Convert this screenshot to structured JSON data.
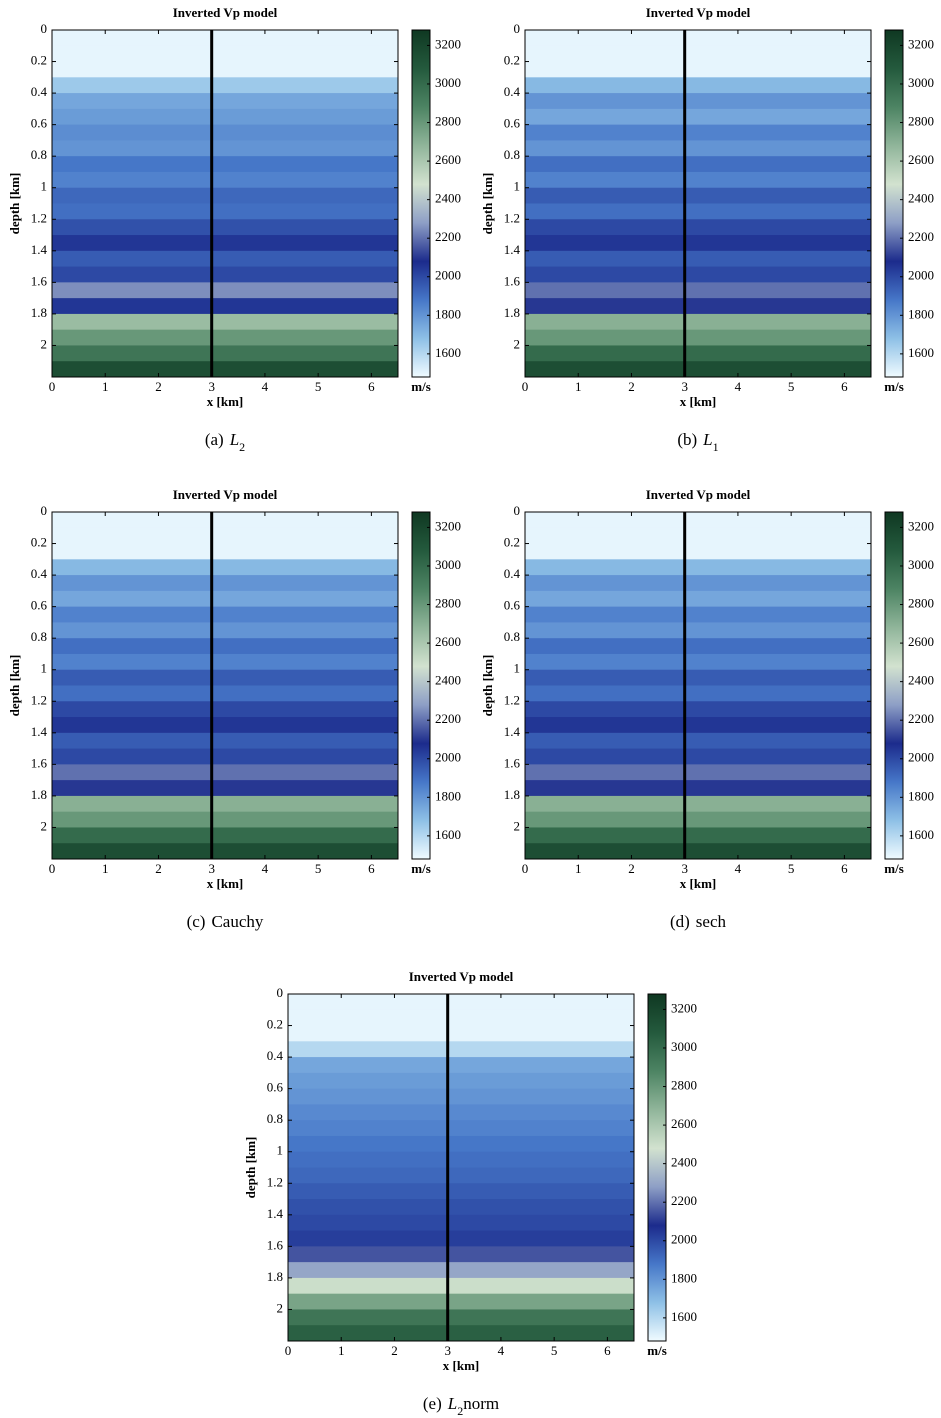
{
  "chart_data": [
    {
      "type": "heatmap",
      "title": "Inverted Vp model",
      "xlabel": "x [km]",
      "ylabel": "depth [km]",
      "xlim": [
        0,
        6.5
      ],
      "ylim": [
        0,
        2.2
      ],
      "xticks": [
        0,
        1,
        2,
        3,
        4,
        5,
        6
      ],
      "yticks": [
        0,
        0.2,
        0.4,
        0.6,
        0.8,
        1,
        1.2,
        1.4,
        1.6,
        1.8,
        2
      ],
      "depths": [
        0,
        0.1,
        0.2,
        0.3,
        0.4,
        0.5,
        0.6,
        0.7,
        0.8,
        0.9,
        1,
        1.1,
        1.2,
        1.3,
        1.4,
        1.5,
        1.6,
        1.7,
        1.8,
        1.9,
        2,
        2.1
      ],
      "values": [
        1500,
        1500,
        1500,
        1650,
        1750,
        1780,
        1820,
        1800,
        1880,
        1850,
        1920,
        1900,
        1980,
        2050,
        1950,
        2000,
        2250,
        2050,
        2650,
        2800,
        2950,
        3150
      ],
      "marker_x": 3,
      "clim": [
        1480,
        3280
      ],
      "cticks": [
        1600,
        1800,
        2000,
        2200,
        2400,
        2600,
        2800,
        3000,
        3200
      ],
      "clabel": "m/s",
      "colormap": [
        "#f0fbff",
        "#8ec0e6",
        "#4677c8",
        "#1c2b8c",
        "#8e9fc6",
        "#d2e2cf",
        "#90b59a",
        "#4d8463",
        "#245a3d",
        "#0f3822"
      ],
      "caption": {
        "label": "(a)",
        "parts": [
          {
            "text": "L",
            "style": "italic"
          },
          {
            "text": "2",
            "style": "sub"
          }
        ]
      }
    },
    {
      "type": "heatmap",
      "title": "Inverted Vp model",
      "xlabel": "x [km]",
      "ylabel": "depth [km]",
      "xlim": [
        0,
        6.5
      ],
      "ylim": [
        0,
        2.2
      ],
      "xticks": [
        0,
        1,
        2,
        3,
        4,
        5,
        6
      ],
      "yticks": [
        0,
        0.2,
        0.4,
        0.6,
        0.8,
        1,
        1.2,
        1.4,
        1.6,
        1.8,
        2
      ],
      "depths": [
        0,
        0.1,
        0.2,
        0.3,
        0.4,
        0.5,
        0.6,
        0.7,
        0.8,
        0.9,
        1,
        1.1,
        1.2,
        1.3,
        1.4,
        1.5,
        1.6,
        1.7,
        1.8,
        1.9,
        2,
        2.1
      ],
      "values": [
        1500,
        1500,
        1500,
        1700,
        1800,
        1750,
        1850,
        1800,
        1900,
        1850,
        1950,
        1900,
        2000,
        2050,
        1950,
        2000,
        2200,
        2100,
        2700,
        2800,
        3000,
        3150
      ],
      "marker_x": 3,
      "clim": [
        1480,
        3280
      ],
      "cticks": [
        1600,
        1800,
        2000,
        2200,
        2400,
        2600,
        2800,
        3000,
        3200
      ],
      "clabel": "m/s",
      "colormap": [
        "#f0fbff",
        "#8ec0e6",
        "#4677c8",
        "#1c2b8c",
        "#8e9fc6",
        "#d2e2cf",
        "#90b59a",
        "#4d8463",
        "#245a3d",
        "#0f3822"
      ],
      "caption": {
        "label": "(b)",
        "parts": [
          {
            "text": "L",
            "style": "italic"
          },
          {
            "text": "1",
            "style": "sub"
          }
        ]
      }
    },
    {
      "type": "heatmap",
      "title": "Inverted Vp model",
      "xlabel": "x [km]",
      "ylabel": "depth [km]",
      "xlim": [
        0,
        6.5
      ],
      "ylim": [
        0,
        2.2
      ],
      "xticks": [
        0,
        1,
        2,
        3,
        4,
        5,
        6
      ],
      "yticks": [
        0,
        0.2,
        0.4,
        0.6,
        0.8,
        1,
        1.2,
        1.4,
        1.6,
        1.8,
        2
      ],
      "depths": [
        0,
        0.1,
        0.2,
        0.3,
        0.4,
        0.5,
        0.6,
        0.7,
        0.8,
        0.9,
        1,
        1.1,
        1.2,
        1.3,
        1.4,
        1.5,
        1.6,
        1.7,
        1.8,
        1.9,
        2,
        2.1
      ],
      "values": [
        1500,
        1500,
        1500,
        1700,
        1800,
        1750,
        1850,
        1800,
        1900,
        1850,
        1950,
        1900,
        2000,
        2050,
        1950,
        2000,
        2200,
        2100,
        2700,
        2800,
        3000,
        3150
      ],
      "marker_x": 3,
      "clim": [
        1480,
        3280
      ],
      "cticks": [
        1600,
        1800,
        2000,
        2200,
        2400,
        2600,
        2800,
        3000,
        3200
      ],
      "clabel": "m/s",
      "colormap": [
        "#f0fbff",
        "#8ec0e6",
        "#4677c8",
        "#1c2b8c",
        "#8e9fc6",
        "#d2e2cf",
        "#90b59a",
        "#4d8463",
        "#245a3d",
        "#0f3822"
      ],
      "caption": {
        "label": "(c)",
        "parts": [
          {
            "text": "Cauchy",
            "style": "normal"
          }
        ]
      }
    },
    {
      "type": "heatmap",
      "title": "Inverted Vp model",
      "xlabel": "x [km]",
      "ylabel": "depth [km]",
      "xlim": [
        0,
        6.5
      ],
      "ylim": [
        0,
        2.2
      ],
      "xticks": [
        0,
        1,
        2,
        3,
        4,
        5,
        6
      ],
      "yticks": [
        0,
        0.2,
        0.4,
        0.6,
        0.8,
        1,
        1.2,
        1.4,
        1.6,
        1.8,
        2
      ],
      "depths": [
        0,
        0.1,
        0.2,
        0.3,
        0.4,
        0.5,
        0.6,
        0.7,
        0.8,
        0.9,
        1,
        1.1,
        1.2,
        1.3,
        1.4,
        1.5,
        1.6,
        1.7,
        1.8,
        1.9,
        2,
        2.1
      ],
      "values": [
        1500,
        1500,
        1500,
        1700,
        1800,
        1750,
        1850,
        1800,
        1900,
        1850,
        1950,
        1900,
        2000,
        2050,
        1950,
        2000,
        2200,
        2100,
        2700,
        2800,
        3000,
        3150
      ],
      "marker_x": 3,
      "clim": [
        1480,
        3280
      ],
      "cticks": [
        1600,
        1800,
        2000,
        2200,
        2400,
        2600,
        2800,
        3000,
        3200
      ],
      "clabel": "m/s",
      "colormap": [
        "#f0fbff",
        "#8ec0e6",
        "#4677c8",
        "#1c2b8c",
        "#8e9fc6",
        "#d2e2cf",
        "#90b59a",
        "#4d8463",
        "#245a3d",
        "#0f3822"
      ],
      "caption": {
        "label": "(d)",
        "parts": [
          {
            "text": "sech",
            "style": "normal"
          }
        ]
      }
    },
    {
      "type": "heatmap",
      "title": "Inverted Vp model",
      "xlabel": "x [km]",
      "ylabel": "depth [km]",
      "xlim": [
        0,
        6.5
      ],
      "ylim": [
        0,
        2.2
      ],
      "xticks": [
        0,
        1,
        2,
        3,
        4,
        5,
        6
      ],
      "yticks": [
        0,
        0.2,
        0.4,
        0.6,
        0.8,
        1,
        1.2,
        1.4,
        1.6,
        1.8,
        2
      ],
      "depths": [
        0,
        0.1,
        0.2,
        0.3,
        0.4,
        0.5,
        0.6,
        0.7,
        0.8,
        0.9,
        1,
        1.1,
        1.2,
        1.3,
        1.4,
        1.5,
        1.6,
        1.7,
        1.8,
        1.9,
        2,
        2.1
      ],
      "values": [
        1500,
        1500,
        1500,
        1600,
        1750,
        1780,
        1800,
        1830,
        1850,
        1880,
        1900,
        1920,
        1950,
        1980,
        2000,
        2030,
        2150,
        2300,
        2500,
        2750,
        2950,
        3050
      ],
      "marker_x": 3,
      "clim": [
        1480,
        3280
      ],
      "cticks": [
        1600,
        1800,
        2000,
        2200,
        2400,
        2600,
        2800,
        3000,
        3200
      ],
      "clabel": "m/s",
      "colormap": [
        "#f0fbff",
        "#8ec0e6",
        "#4677c8",
        "#1c2b8c",
        "#8e9fc6",
        "#d2e2cf",
        "#90b59a",
        "#4d8463",
        "#245a3d",
        "#0f3822"
      ],
      "caption": {
        "label": "(e)",
        "parts": [
          {
            "text": "L",
            "style": "italic"
          },
          {
            "text": "2",
            "style": "sub"
          },
          {
            "text": "norm",
            "style": "normal"
          }
        ]
      }
    }
  ]
}
